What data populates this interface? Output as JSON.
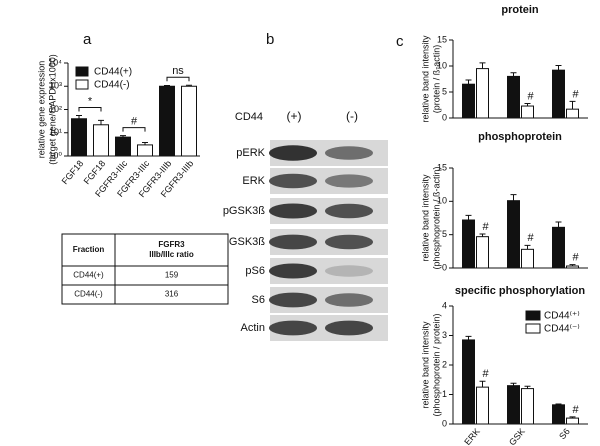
{
  "panel_labels": [
    "a",
    "b",
    "c"
  ],
  "chart_data": [
    {
      "type": "bar",
      "ylabel": [
        "relative gene expression",
        "(target gene/GAPDHx1000)"
      ],
      "categories": [
        "FGF18",
        "FGF18",
        "FGFR3-IIIc",
        "FGFR3-IIIc",
        "FGFR3-IIIb",
        "FGFR3-IIIb"
      ],
      "series": [
        {
          "name": "CD44(+)",
          "color": "#111111",
          "values": [
            40,
            null,
            6.5,
            null,
            1000,
            null
          ],
          "errors": [
            15,
            null,
            1,
            null,
            80,
            null
          ]
        },
        {
          "name": "CD44(-)",
          "color": "#ffffff",
          "values": [
            null,
            22,
            null,
            3,
            null,
            1000
          ],
          "errors": [
            null,
            12,
            null,
            0.8,
            null,
            100
          ]
        }
      ],
      "log_y": true,
      "ylim": [
        1,
        10000
      ],
      "yticks": [
        {
          "value": 1,
          "label": "10⁰"
        },
        {
          "value": 10,
          "label": "10¹"
        },
        {
          "value": 100,
          "label": "10²"
        },
        {
          "value": 1000,
          "label": "10³"
        },
        {
          "value": 10000,
          "label": "10⁴"
        }
      ],
      "legend": "upper left",
      "annotations": [
        "*",
        "#",
        "ns"
      ]
    },
    {
      "type": "bar",
      "title": "protein",
      "ylabel": [
        "relative band intensity",
        "(protein / ß-actin)"
      ],
      "categories": [
        null,
        null,
        null
      ],
      "series": [
        {
          "color": "#111111",
          "values": [
            6.5,
            8,
            9.2
          ],
          "errors": [
            0.8,
            0.7,
            0.9
          ]
        },
        {
          "color": "#ffffff",
          "values": [
            9.5,
            2.3,
            1.7
          ],
          "errors": [
            1.1,
            0.5,
            1.5
          ]
        }
      ],
      "ylim": [
        0,
        15
      ],
      "yticks": [
        0,
        5,
        10,
        15
      ],
      "annotations": [
        "#",
        "#"
      ]
    },
    {
      "type": "bar",
      "title": "phosphoprotein",
      "ylabel": [
        "relative band intensity",
        "(phosphoprotein / ß-actin)"
      ],
      "categories": [
        null,
        null,
        null
      ],
      "series": [
        {
          "color": "#111111",
          "values": [
            7.2,
            10.1,
            6.1
          ],
          "errors": [
            0.7,
            0.9,
            0.8
          ]
        },
        {
          "color": "#ffffff",
          "values": [
            4.7,
            2.8,
            0.3
          ],
          "errors": [
            0.4,
            0.6,
            0.2
          ]
        }
      ],
      "ylim": [
        0,
        15
      ],
      "yticks": [
        0,
        5,
        10,
        15
      ],
      "annotations": [
        "#",
        "#",
        "#"
      ]
    },
    {
      "type": "bar",
      "title": "specific phosphorylation",
      "ylabel": [
        "relative band intensity",
        "(phosphoprotein / protein)"
      ],
      "categories": [
        "ERK",
        "GSK",
        "S6"
      ],
      "series": [
        {
          "name": "CD44⁽⁺⁾",
          "color": "#111111",
          "values": [
            2.85,
            1.3,
            0.65
          ],
          "errors": [
            0.12,
            0.08,
            0.03
          ]
        },
        {
          "name": "CD44⁽⁻⁾",
          "color": "#ffffff",
          "values": [
            1.25,
            1.2,
            0.2
          ],
          "errors": [
            0.2,
            0.08,
            0.04
          ]
        }
      ],
      "ylim": [
        0,
        4
      ],
      "yticks": [
        0,
        1,
        2,
        3,
        4
      ],
      "legend": "upper right",
      "annotations": [
        "#",
        "#"
      ]
    }
  ],
  "table": {
    "header": [
      "Fraction",
      [
        "FGFR3",
        "IIIb/IIIc ratio"
      ]
    ],
    "rows": [
      [
        "CD44(+)",
        "159"
      ],
      [
        "CD44(-)",
        "316"
      ]
    ]
  },
  "blot": {
    "header": [
      "CD44",
      "(+)",
      "(-)"
    ],
    "rows": [
      "pERK",
      "ERK",
      "pGSK3ß",
      "GSK3ß",
      "pS6",
      "S6",
      "Actin"
    ]
  }
}
